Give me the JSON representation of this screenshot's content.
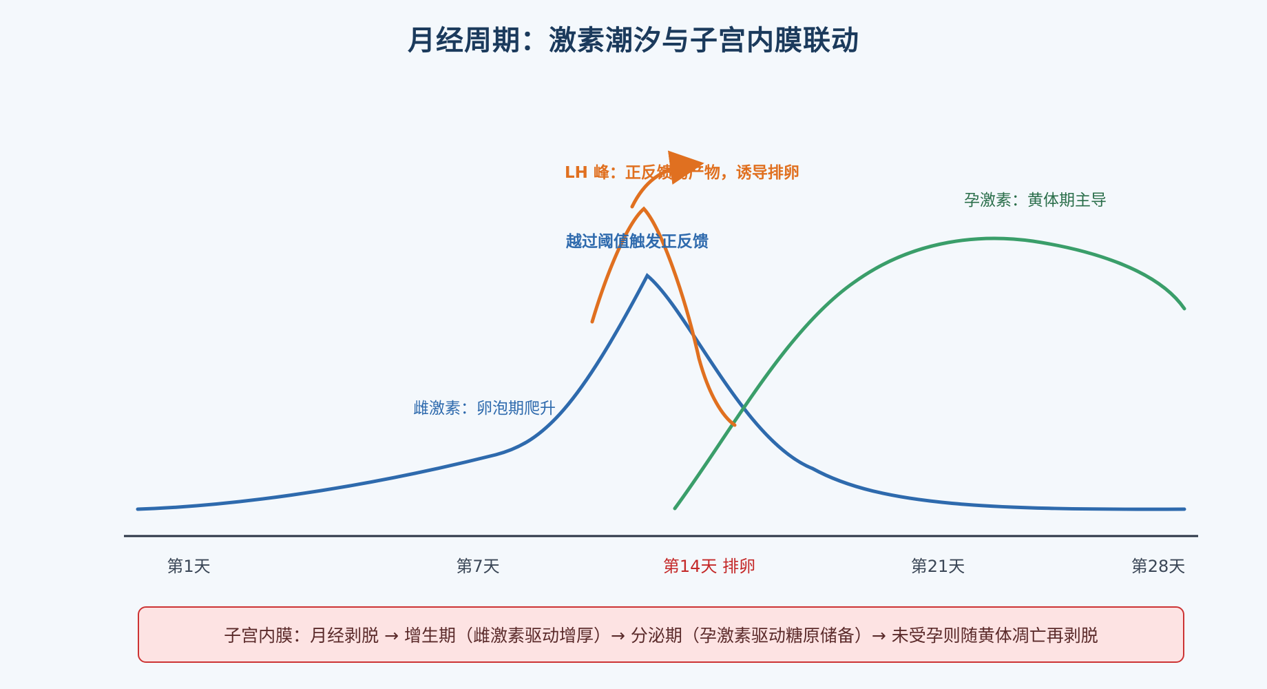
{
  "title": "月经周期：激素潮汐与子宫内膜联动",
  "labels": {
    "estrogen": "雌激素：卵泡期爬升",
    "threshold": "越过阈值触发正反馈",
    "lh": "LH 峰：正反馈的产物，诱导排卵",
    "progesterone": "孕激素：黄体期主导"
  },
  "axis": {
    "ticks": [
      "第1天",
      "第7天",
      "第14天 排卵",
      "第21天",
      "第28天"
    ]
  },
  "footer": "子宫内膜：月经剥脱 → 增生期（雌激素驱动增厚）→ 分泌期（孕激素驱动糖原储备）→ 未受孕则随黄体凋亡再剥脱",
  "colors": {
    "estrogen": "#2e6aad",
    "lh": "#e07020",
    "progesterone": "#3a9e6a",
    "axis": "#2a3444",
    "ovulation": "#c42828",
    "title": "#1b3a5c"
  }
}
